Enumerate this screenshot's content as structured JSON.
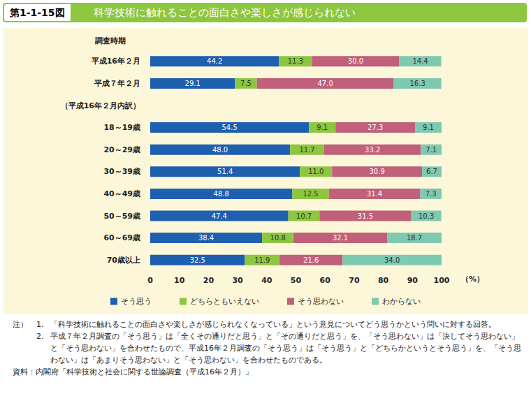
{
  "figure_label": "第1-1-15図",
  "chart_data": {
    "type": "bar",
    "orientation": "horizontal",
    "stacked": true,
    "title": "科学技術に触れることの面白さや楽しさが感じられない",
    "y_header": "調査時期",
    "x_unit_label": "（%）",
    "categories": [
      "平成16年２月",
      "平成７年２月",
      "（平成16年２月内訳）",
      "18～19歳",
      "20～29歳",
      "30～39歳",
      "40～49歳",
      "50～59歳",
      "60～69歳",
      "70歳以上"
    ],
    "series": [
      {
        "name": "そう思う",
        "color": "#1f5fb0",
        "values": [
          44.2,
          29.1,
          null,
          54.5,
          48.0,
          51.4,
          48.8,
          47.4,
          38.4,
          32.5
        ],
        "value_labels": [
          "44.2",
          "29.1",
          null,
          "54.5",
          "48.0",
          "51.4",
          "48.8",
          "47.4",
          "38.4",
          "32.5"
        ]
      },
      {
        "name": "どちらともいえない",
        "color": "#8dc63f",
        "values": [
          11.3,
          7.5,
          null,
          9.1,
          11.7,
          11.0,
          12.5,
          10.7,
          10.8,
          11.9
        ],
        "value_labels": [
          "11.3",
          "7.5",
          null,
          "9.1",
          "11.7",
          "11.0",
          "12.5",
          "10.7",
          "10.8",
          "11.9"
        ]
      },
      {
        "name": "そう思わない",
        "color": "#c0607a",
        "values": [
          30.0,
          47.0,
          null,
          27.3,
          33.2,
          30.9,
          31.4,
          31.5,
          32.1,
          21.6
        ],
        "value_labels": [
          "30.0",
          "47.0",
          null,
          "27.3",
          "33.2",
          "30.9",
          "31.4",
          "31.5",
          "32.1",
          "21.6"
        ]
      },
      {
        "name": "わからない",
        "color": "#7fc9b0",
        "values": [
          14.4,
          16.3,
          null,
          9.1,
          7.1,
          6.7,
          7.3,
          10.3,
          18.7,
          34.0
        ],
        "value_labels": [
          "14.4",
          "16.3",
          null,
          "9.1",
          "7.1",
          "6.7",
          "7.3",
          "10.3",
          "18.7",
          "34.0"
        ]
      }
    ],
    "xlim": [
      0,
      100
    ],
    "xticks": [
      0,
      10,
      20,
      30,
      40,
      50,
      60,
      70,
      80,
      90,
      100
    ],
    "grid": false,
    "legend": "bottom",
    "data_labels": true
  },
  "notes_label": "注）",
  "notes": [
    {
      "number": "1.",
      "text": "「科学技術に触れることの面白さや楽しさが感じられなくなっている」という意見についてどう思うかという問いに対する回答。"
    },
    {
      "number": "2.",
      "text": "平成７年２月調査の「そう思う」は「全くその通りだと思う」と「その通りだと思う」を、「そう思わない」は「決してそう思わない」と「そう思わない」を合わせたもので、平成16年２月調査の「そう思う」は「そう思う」と「どちらかというとそう思う」を、「そう思わない」は「あまりそう思わない」と「そう思わない」を合わせたものである。"
    }
  ],
  "source": "資料：内閣府「科学技術と社会に関する世論調査（平成16年２月）」"
}
